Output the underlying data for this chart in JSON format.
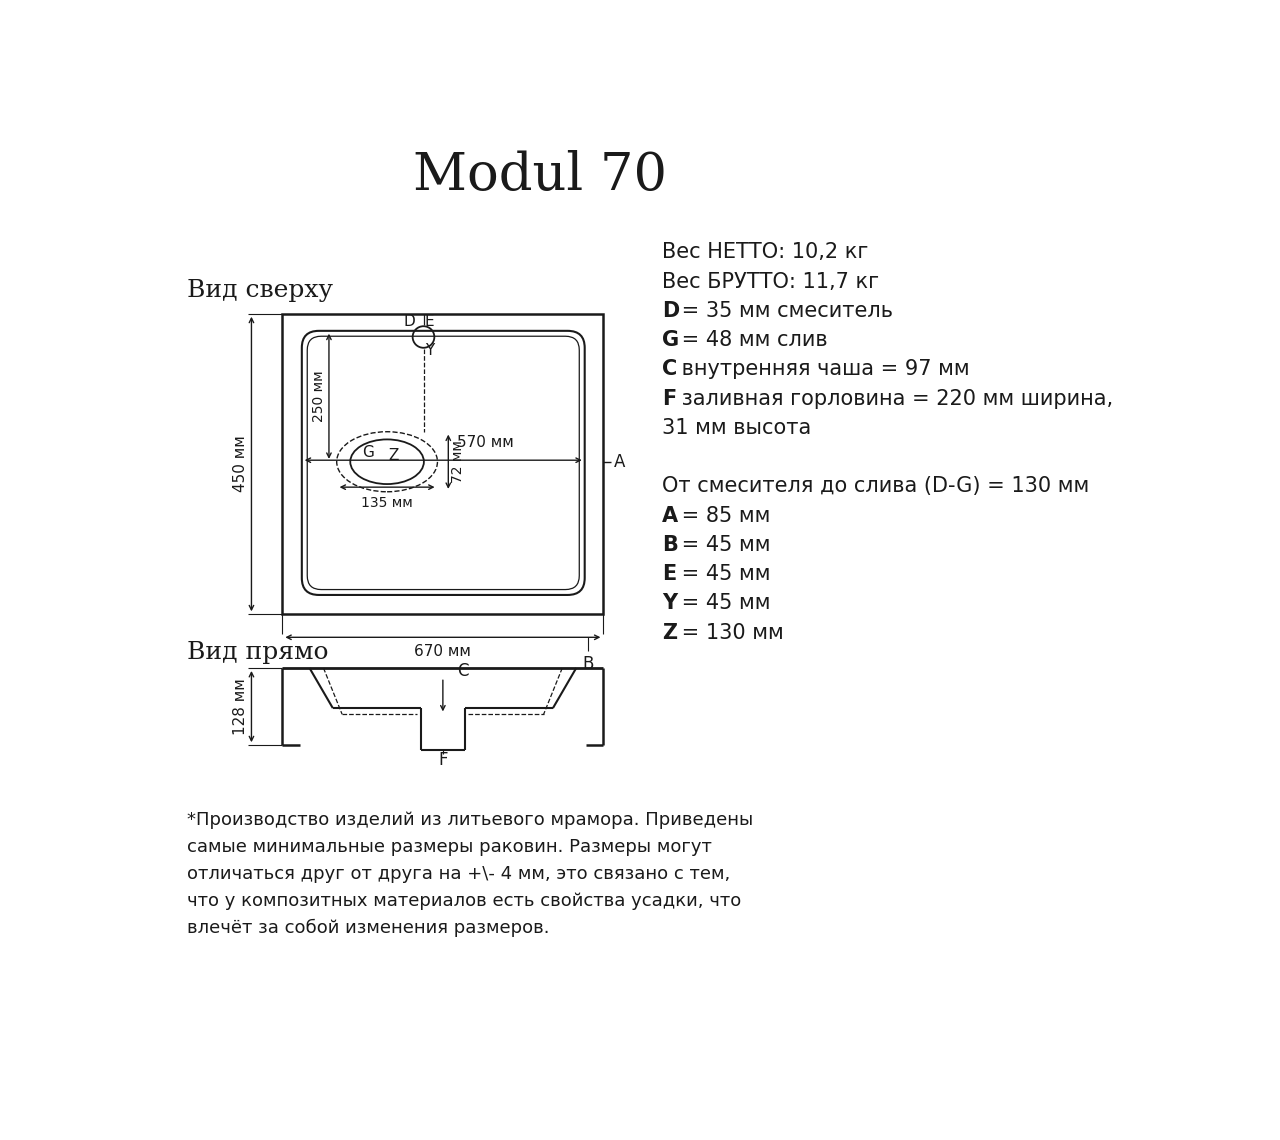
{
  "title": "Modul 70",
  "title_fontsize": 38,
  "bg_color": "#ffffff",
  "text_color": "#1a1a1a",
  "line_color": "#1a1a1a",
  "view_top_label": "Вид сверху",
  "view_front_label": "Вид прямо",
  "footnote": "*Производство изделий из литьевого мрамора. Приведены\nсамые минимальные размеры раковин. Размеры могут\nотличаться друг от друга на +\\- 4 мм, это связано с тем,\nчто у композитных материалов есть свойства усадки, что\nвлечёт за собой изменения размеров."
}
